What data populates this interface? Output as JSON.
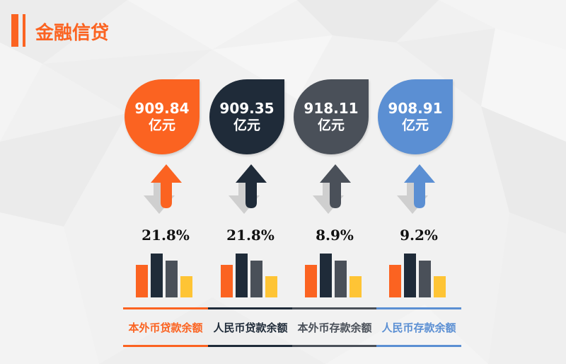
{
  "page": {
    "title": "金融信贷"
  },
  "palette": {
    "orange": "#fb6321",
    "navy": "#1f2b39",
    "gray": "#4a5059",
    "blue": "#5b8fd3",
    "yellow": "#fec435"
  },
  "items": [
    {
      "amount": "909.84",
      "unit": "亿元",
      "growth": "21.8%",
      "label": "本外币贷款余额",
      "color": "#fb6321",
      "icon": "arrow-up-icon"
    },
    {
      "amount": "909.35",
      "unit": "亿元",
      "growth": "21.8%",
      "label": "人民币贷款余额",
      "color": "#1f2b39",
      "icon": "arrow-up-icon"
    },
    {
      "amount": "918.11",
      "unit": "亿元",
      "growth": "8.9%",
      "label": "本外币存款余额",
      "color": "#4a5059",
      "icon": "arrow-up-icon"
    },
    {
      "amount": "908.91",
      "unit": "亿元",
      "growth": "9.2%",
      "label": "人民币存款余额",
      "color": "#5b8fd3",
      "icon": "arrow-up-icon"
    }
  ]
}
